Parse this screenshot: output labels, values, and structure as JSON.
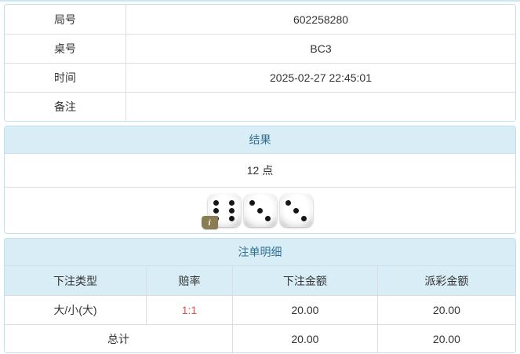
{
  "panel_top": {
    "rows": [
      {
        "label": "局号",
        "value": "602258280"
      },
      {
        "label": "桌号",
        "value": "BC3"
      },
      {
        "label": "时间",
        "value": "2025-02-27 22:45:01"
      },
      {
        "label": "备注",
        "value": ""
      }
    ]
  },
  "result_panel": {
    "title": "结果",
    "points": "12 点",
    "dice": [
      6,
      3,
      3
    ],
    "info_badge": "i"
  },
  "bets_panel": {
    "title": "注单明细",
    "headers": [
      "下注类型",
      "赔率",
      "下注金额",
      "派彩金额"
    ],
    "rows": [
      {
        "type": "大/小(大)",
        "odds": "1:1",
        "bet": "20.00",
        "payout": "20.00"
      }
    ],
    "total": {
      "label": "总计",
      "bet": "20.00",
      "payout": "20.00"
    }
  },
  "colors": {
    "header_bg": "#d9edf7",
    "header_text": "#31708f",
    "panel_border": "#bfe0ee",
    "row_border": "#dddddd",
    "odds_red": "#d9534f",
    "badge_olive": "#8a7d52",
    "text": "#333333"
  }
}
